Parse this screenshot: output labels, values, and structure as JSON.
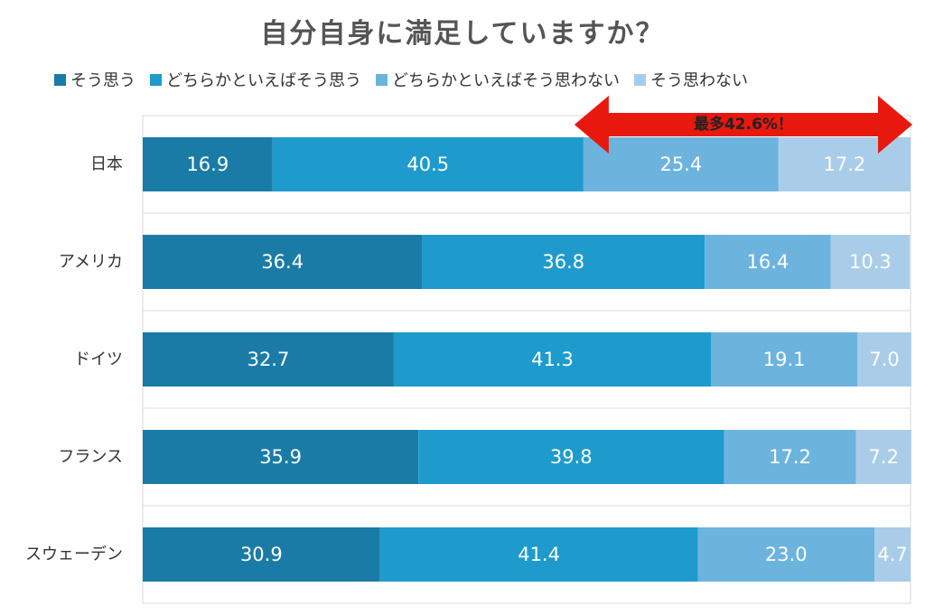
{
  "chart_data": {
    "type": "bar",
    "orientation": "horizontal",
    "stacked": true,
    "title": "自分自身に満足していますか？",
    "categories": [
      "日本",
      "アメリカ",
      "ドイツ",
      "フランス",
      "スウェーデン"
    ],
    "series": [
      {
        "name": "そう思う",
        "color": "#1a7ca6",
        "values": [
          16.9,
          36.4,
          32.7,
          35.9,
          30.9
        ]
      },
      {
        "name": "どちらかといえばそう思う",
        "color": "#1e9bcc",
        "values": [
          40.5,
          36.8,
          41.3,
          39.8,
          41.4
        ]
      },
      {
        "name": "どちらかといえばそう思わない",
        "color": "#6cb3de",
        "values": [
          25.4,
          16.4,
          19.1,
          17.2,
          23.0
        ]
      },
      {
        "name": "そう思わない",
        "color": "#a9cde8",
        "values": [
          17.2,
          10.3,
          7.0,
          7.2,
          4.7
        ]
      }
    ],
    "xlim": [
      0,
      100
    ],
    "grid": true,
    "legend_position": "top",
    "annotation": {
      "text": "最多42.6%！",
      "category": "日本",
      "from_value": 57.4,
      "to_value": 100,
      "color": "#e8180f"
    }
  }
}
